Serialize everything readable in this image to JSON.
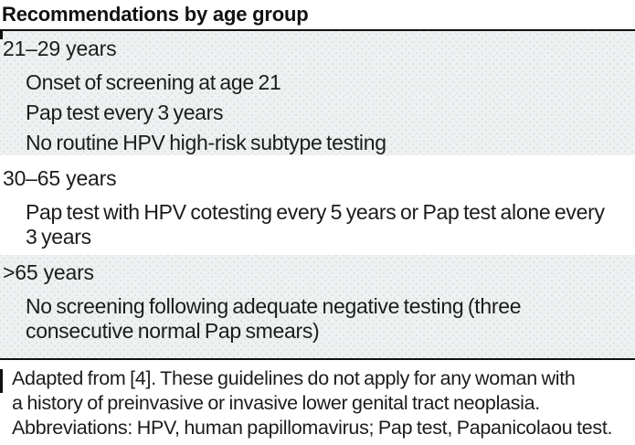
{
  "title": "Recommendations by age group",
  "sections": [
    {
      "header": "21–29 years",
      "items": [
        {
          "lines": [
            "Onset of screening at age 21"
          ]
        },
        {
          "lines": [
            "Pap test every 3 years"
          ]
        },
        {
          "lines": [
            "No routine HPV high-risk subtype testing"
          ]
        }
      ]
    },
    {
      "header": "30–65 years",
      "items": [
        {
          "lines": [
            "Pap test with HPV cotesting every 5 years or Pap test alone every",
            "3 years"
          ]
        }
      ]
    },
    {
      "header": ">65 years",
      "items": [
        {
          "lines": [
            "No screening following adequate negative testing (three",
            "consecutive normal Pap smears)"
          ]
        }
      ]
    }
  ],
  "footnote": {
    "lines": [
      "Adapted from [4]. These guidelines do not apply for any woman with",
      "a history of preinvasive or invasive lower genital tract neoplasia.",
      "Abbreviations: HPV, human papillomavirus; Pap test, Papanicolaou test."
    ]
  },
  "colors": {
    "shaded_band_base": "#eef1f1",
    "shaded_band_dot": "#dde3e3",
    "rule": "#111111",
    "text": "#1c1c1c"
  }
}
